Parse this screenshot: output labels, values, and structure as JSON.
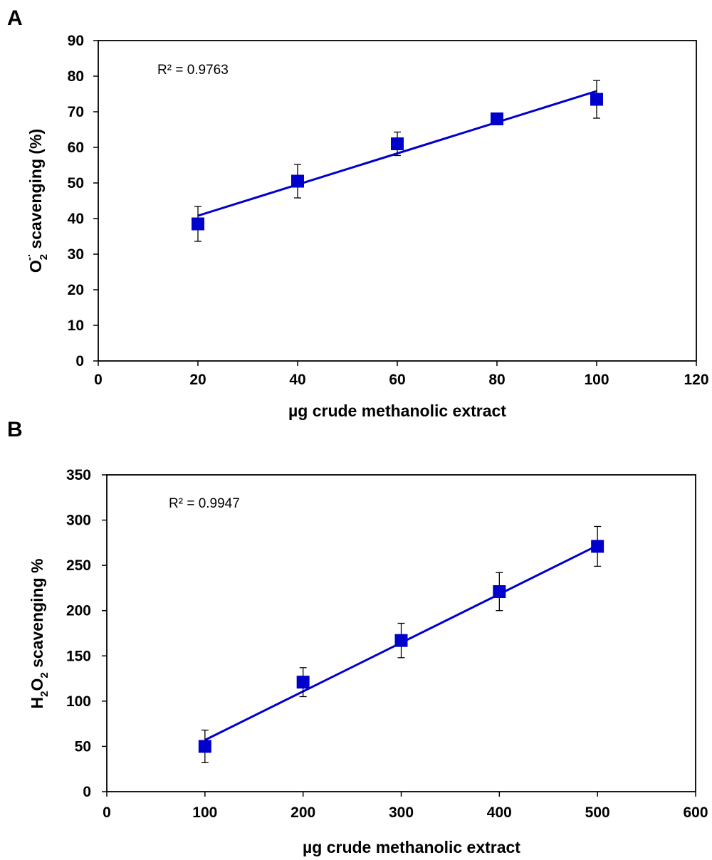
{
  "chart_data": [
    {
      "type": "scatter",
      "panel_label": "A",
      "r2_label": "R² = 0.9763",
      "xlabel": "µg crude methanolic extract",
      "ylabel": {
        "pre": "O",
        "sub": "2",
        "sup": "-·",
        "post": " scavenging (%)"
      },
      "xlim": [
        0,
        120
      ],
      "ylim": [
        0,
        90
      ],
      "xticks": [
        0,
        20,
        40,
        60,
        80,
        100,
        120
      ],
      "yticks": [
        0,
        10,
        20,
        30,
        40,
        50,
        60,
        70,
        80,
        90
      ],
      "series": [
        {
          "name": "scavenging",
          "marker": "square",
          "color": "#0000cc",
          "points": [
            {
              "x": 20,
              "y": 38.5,
              "err": 4.9
            },
            {
              "x": 40,
              "y": 50.5,
              "err": 4.7
            },
            {
              "x": 60,
              "y": 61,
              "err": 3.3
            },
            {
              "x": 80,
              "y": 68,
              "err": 0.7
            },
            {
              "x": 100,
              "y": 73.5,
              "err": 5.3
            }
          ]
        }
      ],
      "trendline": {
        "color": "#0000cc",
        "x": [
          20,
          100
        ],
        "y": [
          40.8,
          75.8
        ]
      },
      "grid": false
    },
    {
      "type": "scatter",
      "panel_label": "B",
      "r2_label": "R² = 0.9947",
      "xlabel": "µg crude methanolic extract",
      "ylabel": {
        "pre": "H",
        "sub": "2",
        "mid": "O",
        "sub2": "2",
        "post": " scavenging %"
      },
      "xlim": [
        0,
        600
      ],
      "ylim": [
        0,
        350
      ],
      "xticks": [
        0,
        100,
        200,
        300,
        400,
        500,
        600
      ],
      "yticks": [
        0,
        50,
        100,
        150,
        200,
        250,
        300,
        350
      ],
      "series": [
        {
          "name": "scavenging",
          "marker": "square",
          "color": "#0000cc",
          "points": [
            {
              "x": 100,
              "y": 50,
              "err": 18
            },
            {
              "x": 200,
              "y": 121,
              "err": 16
            },
            {
              "x": 300,
              "y": 167,
              "err": 19
            },
            {
              "x": 400,
              "y": 221,
              "err": 21
            },
            {
              "x": 500,
              "y": 271,
              "err": 22
            }
          ]
        }
      ],
      "trendline": {
        "color": "#0000cc",
        "x": [
          100,
          500
        ],
        "y": [
          57,
          272
        ]
      },
      "grid": false
    }
  ]
}
